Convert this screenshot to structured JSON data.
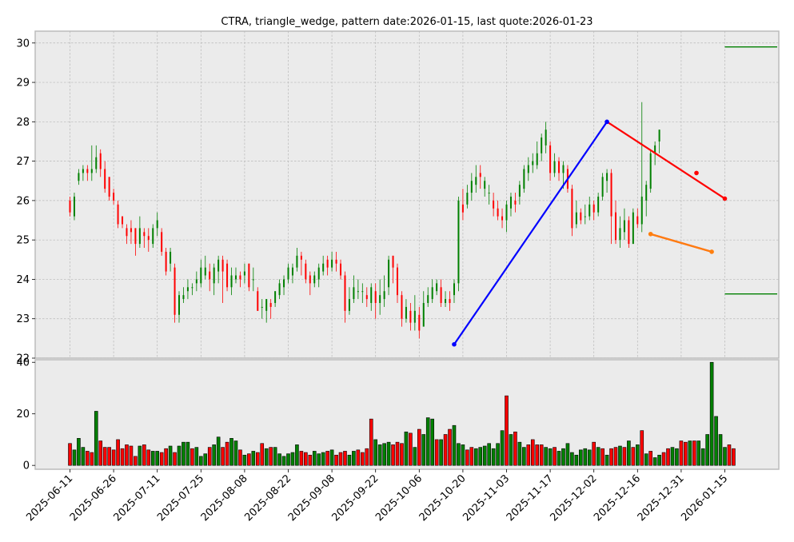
{
  "chart_data": {
    "type": "candlestick",
    "title": "CTRA, triangle_wedge, pattern date:2026-01-15, last quote:2026-01-23",
    "price_panel": {
      "ylim": [
        22,
        30.3
      ],
      "yticks": [
        22,
        23,
        24,
        25,
        26,
        27,
        28,
        29,
        30
      ],
      "grid": true
    },
    "volume_panel": {
      "ylim": [
        -1.5,
        41
      ],
      "yticks": [
        0,
        20,
        40
      ],
      "grid": false
    },
    "x_tick_labels": [
      "2025-06-11",
      "2025-06-26",
      "2025-07-11",
      "2025-07-25",
      "2025-08-08",
      "2025-08-22",
      "2025-09-08",
      "2025-09-22",
      "2025-10-06",
      "2025-10-20",
      "2025-11-03",
      "2025-11-17",
      "2025-12-02",
      "2025-12-16",
      "2025-12-31",
      "2026-01-15"
    ],
    "x_tick_index": [
      0,
      10,
      20,
      30,
      40,
      50,
      60,
      70,
      80,
      90,
      100,
      110,
      120,
      130,
      140,
      150
    ],
    "candles": [
      [
        26.0,
        25.7,
        26.1,
        25.6
      ],
      [
        25.6,
        26.1,
        26.2,
        25.5
      ],
      [
        26.5,
        26.7,
        26.8,
        26.4
      ],
      [
        26.7,
        26.8,
        26.9,
        26.5
      ],
      [
        26.8,
        26.7,
        26.9,
        26.5
      ],
      [
        26.7,
        26.8,
        27.4,
        26.5
      ],
      [
        26.8,
        27.1,
        27.4,
        26.7
      ],
      [
        27.2,
        26.8,
        27.3,
        26.6
      ],
      [
        26.8,
        26.3,
        27.0,
        26.2
      ],
      [
        26.6,
        26.1,
        26.6,
        26.0
      ],
      [
        26.2,
        26.0,
        26.3,
        25.9
      ],
      [
        25.9,
        25.4,
        26.0,
        25.3
      ],
      [
        25.6,
        25.4,
        25.6,
        25.3
      ],
      [
        25.3,
        25.1,
        25.4,
        24.9
      ],
      [
        25.3,
        25.2,
        25.5,
        24.9
      ],
      [
        25.3,
        24.9,
        25.3,
        24.6
      ],
      [
        24.9,
        25.3,
        25.6,
        24.8
      ],
      [
        25.2,
        25.1,
        25.3,
        24.8
      ],
      [
        25.1,
        25.0,
        25.3,
        24.7
      ],
      [
        24.9,
        25.3,
        25.4,
        24.8
      ],
      [
        25.3,
        25.5,
        25.7,
        25.1
      ],
      [
        25.2,
        24.7,
        25.3,
        24.6
      ],
      [
        24.7,
        24.2,
        24.8,
        24.1
      ],
      [
        24.4,
        24.7,
        24.8,
        24.2
      ],
      [
        24.3,
        23.1,
        24.4,
        22.9
      ],
      [
        23.1,
        23.6,
        23.7,
        22.9
      ],
      [
        23.5,
        23.6,
        23.8,
        23.4
      ],
      [
        23.7,
        23.8,
        24.0,
        23.5
      ],
      [
        23.8,
        23.8,
        23.9,
        23.6
      ],
      [
        23.9,
        24.0,
        24.2,
        23.7
      ],
      [
        23.9,
        24.3,
        24.5,
        23.8
      ],
      [
        24.1,
        24.3,
        24.6,
        24.0
      ],
      [
        24.2,
        24.0,
        24.4,
        23.7
      ],
      [
        23.9,
        24.3,
        24.4,
        23.6
      ],
      [
        24.2,
        24.5,
        24.6,
        23.9
      ],
      [
        24.5,
        24.2,
        24.6,
        23.4
      ],
      [
        24.4,
        23.8,
        24.5,
        23.7
      ],
      [
        23.8,
        24.1,
        24.3,
        23.6
      ],
      [
        24.0,
        24.1,
        24.3,
        23.9
      ],
      [
        24.1,
        24.0,
        24.2,
        23.8
      ],
      [
        24.1,
        24.2,
        24.4,
        23.9
      ],
      [
        24.4,
        23.8,
        24.4,
        23.7
      ],
      [
        24.0,
        24.0,
        24.3,
        23.7
      ],
      [
        23.7,
        23.2,
        23.8,
        23.2
      ],
      [
        23.3,
        23.3,
        23.5,
        23.0
      ],
      [
        23.2,
        23.5,
        23.5,
        22.9
      ],
      [
        23.4,
        23.3,
        23.5,
        23.0
      ],
      [
        23.4,
        23.7,
        23.7,
        23.3
      ],
      [
        23.6,
        23.9,
        24.0,
        23.5
      ],
      [
        23.8,
        24.0,
        24.1,
        23.6
      ],
      [
        24.0,
        24.3,
        24.4,
        23.9
      ],
      [
        24.1,
        24.3,
        24.4,
        23.9
      ],
      [
        24.3,
        24.6,
        24.8,
        24.2
      ],
      [
        24.6,
        24.5,
        24.7,
        24.1
      ],
      [
        24.4,
        24.0,
        24.5,
        23.9
      ],
      [
        24.1,
        23.9,
        24.2,
        23.6
      ],
      [
        23.9,
        24.1,
        24.2,
        23.8
      ],
      [
        24.0,
        24.3,
        24.4,
        23.8
      ],
      [
        24.2,
        24.4,
        24.6,
        24.1
      ],
      [
        24.5,
        24.3,
        24.6,
        24.1
      ],
      [
        24.3,
        24.5,
        24.7,
        24.2
      ],
      [
        24.5,
        24.4,
        24.7,
        24.2
      ],
      [
        24.4,
        24.1,
        24.5,
        24.0
      ],
      [
        24.1,
        23.2,
        24.2,
        22.9
      ],
      [
        23.2,
        23.5,
        23.8,
        23.1
      ],
      [
        23.5,
        23.8,
        24.1,
        23.4
      ],
      [
        23.7,
        23.7,
        24.0,
        23.5
      ],
      [
        23.7,
        23.7,
        23.9,
        23.4
      ],
      [
        23.6,
        23.5,
        23.8,
        23.3
      ],
      [
        23.4,
        23.8,
        23.9,
        23.2
      ],
      [
        23.7,
        23.4,
        23.9,
        23.0
      ],
      [
        23.4,
        23.6,
        24.0,
        23.1
      ],
      [
        23.5,
        23.7,
        24.1,
        23.3
      ],
      [
        23.8,
        24.5,
        24.6,
        23.6
      ],
      [
        24.6,
        24.3,
        24.6,
        23.9
      ],
      [
        24.3,
        23.6,
        24.4,
        23.4
      ],
      [
        23.6,
        23.0,
        23.7,
        22.8
      ],
      [
        23.0,
        23.3,
        23.5,
        22.9
      ],
      [
        23.2,
        22.9,
        23.4,
        22.7
      ],
      [
        22.9,
        23.2,
        23.6,
        22.7
      ],
      [
        23.1,
        22.7,
        23.3,
        22.5
      ],
      [
        22.8,
        23.4,
        23.7,
        22.8
      ],
      [
        23.4,
        23.6,
        23.8,
        23.3
      ],
      [
        23.5,
        23.8,
        24.0,
        23.4
      ],
      [
        23.7,
        23.9,
        24.0,
        23.6
      ],
      [
        23.8,
        23.4,
        24.0,
        23.3
      ],
      [
        23.4,
        23.5,
        23.7,
        23.3
      ],
      [
        23.5,
        23.4,
        23.7,
        23.2
      ],
      [
        23.6,
        23.9,
        24.0,
        23.4
      ],
      [
        23.9,
        26.0,
        26.1,
        23.7
      ],
      [
        25.9,
        25.7,
        26.3,
        25.5
      ],
      [
        25.9,
        26.2,
        26.4,
        25.8
      ],
      [
        26.2,
        26.5,
        26.7,
        26.0
      ],
      [
        26.4,
        26.6,
        26.9,
        26.2
      ],
      [
        26.7,
        26.6,
        26.9,
        26.3
      ],
      [
        26.3,
        26.5,
        26.6,
        26.1
      ],
      [
        26.2,
        26.2,
        26.4,
        25.9
      ],
      [
        26.0,
        25.8,
        26.2,
        25.6
      ],
      [
        25.8,
        25.6,
        26.0,
        25.5
      ],
      [
        25.6,
        25.5,
        25.8,
        25.3
      ],
      [
        25.5,
        25.9,
        26.0,
        25.2
      ],
      [
        25.8,
        26.1,
        26.2,
        25.6
      ],
      [
        26.0,
        25.9,
        26.2,
        25.7
      ],
      [
        26.1,
        26.4,
        26.5,
        25.9
      ],
      [
        26.3,
        26.8,
        26.9,
        26.2
      ],
      [
        26.7,
        26.9,
        27.1,
        26.5
      ],
      [
        26.9,
        27.0,
        27.2,
        26.7
      ],
      [
        26.9,
        27.2,
        27.5,
        26.8
      ],
      [
        27.2,
        27.6,
        27.7,
        27.0
      ],
      [
        27.4,
        27.8,
        28.0,
        27.2
      ],
      [
        27.4,
        26.7,
        27.5,
        26.5
      ],
      [
        26.7,
        27.0,
        27.2,
        26.6
      ],
      [
        27.0,
        26.7,
        27.1,
        26.5
      ],
      [
        26.7,
        26.9,
        27.0,
        26.3
      ],
      [
        26.8,
        26.3,
        26.9,
        26.2
      ],
      [
        26.3,
        25.3,
        26.4,
        25.1
      ],
      [
        25.4,
        25.7,
        26.0,
        25.3
      ],
      [
        25.7,
        25.5,
        25.8,
        25.4
      ],
      [
        25.6,
        25.6,
        25.9,
        25.4
      ],
      [
        25.6,
        25.9,
        26.1,
        25.5
      ],
      [
        25.9,
        25.7,
        26.0,
        25.5
      ],
      [
        25.7,
        26.1,
        26.2,
        25.6
      ],
      [
        26.1,
        26.6,
        26.7,
        26.0
      ],
      [
        26.5,
        26.7,
        26.8,
        26.2
      ],
      [
        26.7,
        25.6,
        26.8,
        24.9
      ],
      [
        25.7,
        25.0,
        26.0,
        24.9
      ],
      [
        25.0,
        25.3,
        25.6,
        24.8
      ],
      [
        25.2,
        25.5,
        25.8,
        25.0
      ],
      [
        25.5,
        24.9,
        25.6,
        24.8
      ],
      [
        24.9,
        25.7,
        25.8,
        24.9
      ],
      [
        25.6,
        25.4,
        25.8,
        25.3
      ],
      [
        25.4,
        26.1,
        28.5,
        25.2
      ],
      [
        26.0,
        26.4,
        26.5,
        25.6
      ],
      [
        26.3,
        27.2,
        27.3,
        26.2
      ],
      [
        27.2,
        27.4,
        27.5,
        26.9
      ],
      [
        27.5,
        27.8,
        27.8,
        27.2
      ]
    ],
    "volume": [
      8.5,
      6,
      10.5,
      7,
      5.5,
      5,
      21,
      9.5,
      7,
      7,
      6,
      10,
      6.5,
      8,
      7.5,
      3.5,
      7.5,
      8,
      6,
      5.5,
      5.5,
      5,
      6.5,
      7.5,
      5,
      7.5,
      9,
      9,
      6.5,
      7,
      3.5,
      4.5,
      7,
      8,
      11,
      7,
      9,
      10.5,
      9.5,
      6,
      4,
      4.5,
      5.5,
      5,
      8.5,
      6.5,
      7,
      7,
      4.5,
      3.5,
      4.5,
      5,
      8,
      5.5,
      5,
      4,
      5.5,
      4.5,
      5,
      5.5,
      6,
      4,
      5,
      5.5,
      4,
      5.5,
      6,
      5,
      6.5,
      18,
      10,
      8,
      8.5,
      9,
      8,
      9,
      8.5,
      13,
      12.5,
      7,
      14,
      12,
      18.5,
      18,
      10,
      10,
      12,
      14,
      15.5,
      8.5,
      8,
      6,
      7,
      6.5,
      7,
      7.5,
      8.5,
      6.5,
      8.5,
      13.5,
      27,
      12,
      13,
      9,
      7,
      8,
      10,
      8,
      8,
      7,
      6.5,
      7,
      5.5,
      6.5,
      8.5,
      5,
      4,
      6,
      6.5,
      6,
      9,
      7,
      6.5,
      4,
      6.5,
      7,
      7.5,
      7,
      9.5,
      7,
      8,
      13.5,
      4.5,
      5.5,
      3,
      4,
      5,
      6.5,
      7,
      6.5,
      9.5,
      9,
      9.5,
      9.5,
      9.5,
      6.5,
      12,
      40,
      19,
      12,
      7,
      8,
      6.5
    ],
    "volume_up": [
      false,
      true,
      true,
      true,
      false,
      false,
      true,
      false,
      false,
      false,
      false,
      false,
      false,
      false,
      false,
      false,
      true,
      false,
      false,
      true,
      true,
      false,
      false,
      true,
      false,
      true,
      true,
      true,
      false,
      true,
      true,
      true,
      false,
      true,
      true,
      false,
      false,
      true,
      true,
      false,
      true,
      false,
      true,
      false,
      false,
      true,
      false,
      true,
      true,
      true,
      true,
      true,
      true,
      false,
      false,
      false,
      true,
      true,
      true,
      false,
      true,
      false,
      false,
      false,
      true,
      true,
      false,
      false,
      false,
      false,
      true,
      true,
      true,
      true,
      false,
      false,
      false,
      true,
      false,
      true,
      false,
      true,
      true,
      true,
      false,
      true,
      false,
      false,
      true,
      true,
      true,
      false,
      false,
      true,
      true,
      true,
      true,
      true,
      true,
      true,
      false,
      true,
      false,
      true,
      true,
      false,
      false,
      false,
      false,
      true,
      true,
      false,
      true,
      true,
      true,
      true,
      true,
      true,
      true,
      true,
      false,
      true,
      false,
      true,
      false,
      false,
      true,
      false,
      true,
      false,
      true,
      false,
      true,
      false,
      true,
      true,
      false,
      false,
      true,
      true,
      false,
      false,
      true,
      false,
      true,
      true,
      true,
      true,
      true,
      true,
      true
    ],
    "overlay_lines": [
      {
        "color": "#0000ff",
        "points": [
          [
            88,
            22.35
          ],
          [
            123,
            28.0
          ]
        ]
      },
      {
        "color": "#ff0000",
        "points": [
          [
            123,
            28.0
          ],
          [
            150,
            26.05
          ]
        ]
      },
      {
        "color": "#ff0000",
        "points": [
          [
            133,
            25.15
          ],
          [
            147,
            24.7
          ]
        ]
      },
      {
        "color": "#ff7f0e",
        "points": [
          [
            133,
            25.15
          ],
          [
            147,
            24.7
          ]
        ]
      }
    ],
    "overlay_points": [
      {
        "color": "#0000ff",
        "x": 88,
        "y": 22.35
      },
      {
        "color": "#0000ff",
        "x": 123,
        "y": 28.0
      },
      {
        "color": "#ff0000",
        "x": 143.5,
        "y": 26.7
      },
      {
        "color": "#ff0000",
        "x": 150,
        "y": 26.05
      },
      {
        "color": "#ff7f0e",
        "x": 133,
        "y": 25.15
      },
      {
        "color": "#ff7f0e",
        "x": 147,
        "y": 24.7
      }
    ],
    "hlines": [
      {
        "color": "#008000",
        "y": 29.9,
        "x_start": 150
      },
      {
        "color": "#008000",
        "y": 23.63,
        "x_start": 150
      }
    ],
    "colors": {
      "up": "#008000",
      "down": "#ff0000",
      "background": "#ebebeb"
    }
  }
}
